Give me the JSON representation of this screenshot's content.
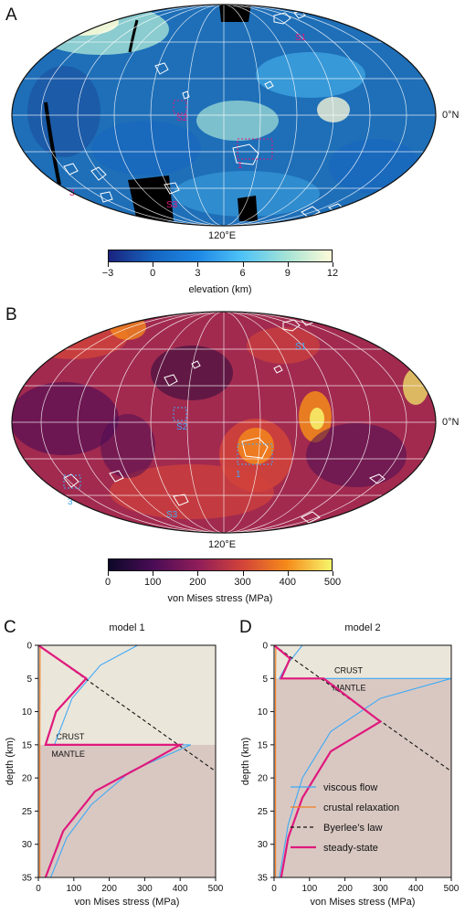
{
  "panels": {
    "a": {
      "letter": "A",
      "lat_label": "0°N",
      "lon_label": "120°E",
      "sites": [
        "S1",
        "S2",
        "S3",
        "1",
        "3"
      ],
      "colorbar": {
        "ticks": [
          "−3",
          "0",
          "3",
          "6",
          "9",
          "12"
        ],
        "title": "elevation (km)",
        "colors": [
          "#1a237e",
          "#1565c0",
          "#1e88e5",
          "#4fc3f7",
          "#a5e3d5",
          "#fffbd8"
        ]
      }
    },
    "b": {
      "letter": "B",
      "lat_label": "0°N",
      "lon_label": "120°E",
      "sites": [
        "S1",
        "S2",
        "S3",
        "1",
        "3"
      ],
      "colorbar": {
        "ticks": [
          "0",
          "100",
          "200",
          "300",
          "400",
          "500"
        ],
        "title": "von Mises stress (MPa)",
        "colors": [
          "#0d0829",
          "#4a0c55",
          "#8f1d5a",
          "#d2433a",
          "#f58b1a",
          "#f6f56b"
        ]
      }
    }
  },
  "legend": [
    {
      "label": "viscous flow",
      "color": "#3fa9f5",
      "style": "solid"
    },
    {
      "label": "crustal relaxation",
      "color": "#f07d22",
      "style": "solid"
    },
    {
      "label": "Byerlee’s law",
      "color": "#111111",
      "style": "dashed"
    },
    {
      "label": "steady-state",
      "color": "#e0197d",
      "style": "bold"
    }
  ],
  "chart_data": [
    {
      "type": "line",
      "panel": "C",
      "title": "model 1",
      "xlabel": "von Mises stress (MPa)",
      "ylabel": "depth (km)",
      "xlim": [
        0,
        500
      ],
      "ylim": [
        35,
        0
      ],
      "xticks": [
        "0",
        "100",
        "200",
        "300",
        "400",
        "500"
      ],
      "yticks": [
        "0",
        "5",
        "10",
        "15",
        "20",
        "25",
        "30",
        "35"
      ],
      "layers": {
        "crust_label": "CRUST",
        "mantle_label": "MANTLE",
        "boundary_depth": 15
      },
      "series": [
        {
          "name": "viscous flow",
          "color": "#3fa9f5",
          "points": [
            [
              280,
              0
            ],
            [
              175,
              3
            ],
            [
              95,
              8
            ],
            [
              45,
              15
            ],
            [
              430,
              15
            ],
            [
              260,
              19
            ],
            [
              150,
              24
            ],
            [
              80,
              29
            ],
            [
              35,
              35
            ]
          ]
        },
        {
          "name": "crustal relaxation",
          "color": "#f07d22",
          "points": [
            [
              5,
              0
            ],
            [
              4,
              15
            ],
            [
              4,
              35
            ]
          ]
        },
        {
          "name": "Byerlee’s law",
          "color": "#111111",
          "points": [
            [
              0,
              0
            ],
            [
              500,
              19
            ]
          ]
        },
        {
          "name": "steady-state",
          "color": "#e0197d",
          "points": [
            [
              0,
              0
            ],
            [
              135,
              5
            ],
            [
              50,
              10
            ],
            [
              20,
              15
            ],
            [
              400,
              15
            ],
            [
              300,
              18
            ],
            [
              160,
              22
            ],
            [
              70,
              28
            ],
            [
              20,
              35
            ]
          ]
        }
      ]
    },
    {
      "type": "line",
      "panel": "D",
      "title": "model 2",
      "xlabel": "von Mises stress (MPa)",
      "ylabel": "depth (km)",
      "xlim": [
        0,
        500
      ],
      "ylim": [
        35,
        0
      ],
      "xticks": [
        "0",
        "100",
        "200",
        "300",
        "400",
        "500"
      ],
      "yticks": [
        "0",
        "5",
        "10",
        "15",
        "20",
        "25",
        "30",
        "35"
      ],
      "layers": {
        "crust_label": "CRUST",
        "mantle_label": "MANTLE",
        "boundary_depth": 5
      },
      "series": [
        {
          "name": "viscous flow",
          "color": "#3fa9f5",
          "points": [
            [
              80,
              0
            ],
            [
              35,
              3
            ],
            [
              15,
              5
            ],
            [
              500,
              5
            ],
            [
              300,
              8
            ],
            [
              160,
              13
            ],
            [
              80,
              20
            ],
            [
              40,
              27
            ],
            [
              15,
              35
            ]
          ]
        },
        {
          "name": "crustal relaxation",
          "color": "#f07d22",
          "points": [
            [
              5,
              0
            ],
            [
              4,
              5
            ],
            [
              4,
              35
            ]
          ]
        },
        {
          "name": "Byerlee’s law",
          "color": "#111111",
          "points": [
            [
              0,
              0
            ],
            [
              500,
              19
            ]
          ]
        },
        {
          "name": "steady-state",
          "color": "#e0197d",
          "points": [
            [
              0,
              0
            ],
            [
              45,
              2
            ],
            [
              20,
              5
            ],
            [
              140,
              5
            ],
            [
              300,
              11.5
            ],
            [
              160,
              16
            ],
            [
              80,
              23
            ],
            [
              40,
              29
            ],
            [
              20,
              35
            ]
          ]
        }
      ]
    }
  ]
}
